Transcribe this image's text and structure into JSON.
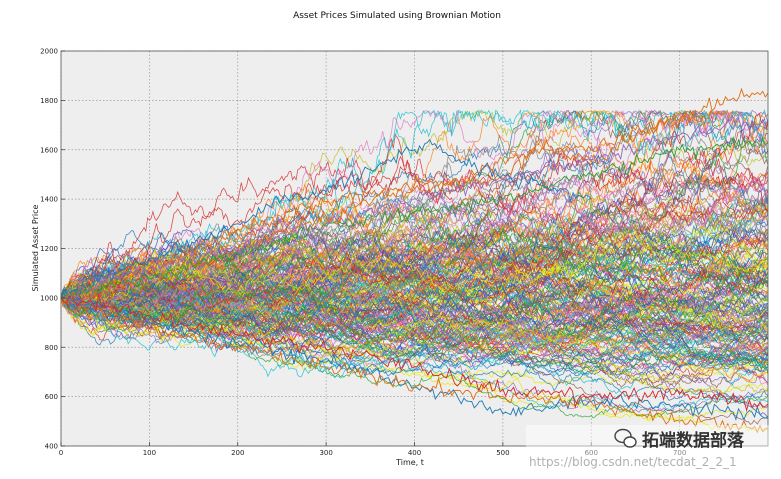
{
  "chart_data": {
    "type": "line",
    "title": "Asset Prices Simulated using Brownian Motion",
    "xlabel": "Time, t",
    "ylabel": "Simulated Asset Price",
    "xlim": [
      0,
      800
    ],
    "ylim": [
      400,
      2000
    ],
    "xticks": [
      0,
      100,
      200,
      300,
      400,
      500,
      600,
      700
    ],
    "yticks": [
      400,
      600,
      800,
      1000,
      1200,
      1400,
      1600,
      1800,
      2000
    ],
    "grid": true,
    "background": "#eeeeee",
    "legend": "none",
    "simulation": {
      "initial_price": 1000,
      "num_steps": 800
    },
    "palette": [
      "#1f77b4",
      "#ff7f0e",
      "#2ca02c",
      "#d62728",
      "#9467bd",
      "#8c564b",
      "#e377c2",
      "#7f7f7f",
      "#bcbd22",
      "#17becf",
      "#e6e600",
      "#3f51b5"
    ],
    "highlighted_series": [
      {
        "color": "#e06c12",
        "points": [
          [
            0,
            1000
          ],
          [
            100,
            1120
          ],
          [
            200,
            1280
          ],
          [
            300,
            1390
          ],
          [
            400,
            1440
          ],
          [
            450,
            1470
          ],
          [
            500,
            1560
          ],
          [
            550,
            1600
          ],
          [
            600,
            1550
          ],
          [
            650,
            1650
          ],
          [
            700,
            1720
          ],
          [
            750,
            1750
          ]
        ]
      },
      {
        "color": "#e06c12",
        "points": [
          [
            0,
            1000
          ],
          [
            100,
            1050
          ],
          [
            200,
            1200
          ],
          [
            300,
            1330
          ],
          [
            400,
            1460
          ],
          [
            500,
            1480
          ],
          [
            540,
            1620
          ],
          [
            600,
            1600
          ],
          [
            650,
            1680
          ],
          [
            700,
            1720
          ],
          [
            755,
            1800
          ],
          [
            800,
            1830
          ]
        ]
      },
      {
        "color": "#1f77b4",
        "points": [
          [
            0,
            1000
          ],
          [
            100,
            1160
          ],
          [
            200,
            1300
          ],
          [
            250,
            1400
          ],
          [
            300,
            1430
          ],
          [
            350,
            1520
          ],
          [
            400,
            1600
          ],
          [
            420,
            1620
          ],
          [
            450,
            1560
          ],
          [
            500,
            1500
          ],
          [
            550,
            1450
          ],
          [
            600,
            1400
          ]
        ]
      },
      {
        "color": "#1f77b4",
        "points": [
          [
            0,
            1000
          ],
          [
            100,
            900
          ],
          [
            200,
            820
          ],
          [
            300,
            740
          ],
          [
            350,
            690
          ],
          [
            400,
            640
          ],
          [
            450,
            590
          ],
          [
            500,
            530
          ],
          [
            550,
            560
          ],
          [
            600,
            580
          ],
          [
            700,
            560
          ],
          [
            800,
            520
          ]
        ]
      },
      {
        "color": "#e06c12",
        "points": [
          [
            0,
            1000
          ],
          [
            100,
            880
          ],
          [
            200,
            800
          ],
          [
            300,
            720
          ],
          [
            400,
            640
          ],
          [
            500,
            600
          ],
          [
            600,
            580
          ],
          [
            700,
            500
          ],
          [
            800,
            470
          ]
        ]
      },
      {
        "color": "#d62728",
        "points": [
          [
            0,
            1000
          ],
          [
            100,
            930
          ],
          [
            200,
            850
          ],
          [
            300,
            790
          ],
          [
            400,
            720
          ],
          [
            500,
            630
          ],
          [
            600,
            600
          ],
          [
            700,
            610
          ],
          [
            800,
            570
          ]
        ]
      },
      {
        "color": "#2ca02c",
        "points": [
          [
            0,
            1000
          ],
          [
            100,
            1080
          ],
          [
            200,
            1180
          ],
          [
            300,
            1290
          ],
          [
            400,
            1350
          ],
          [
            500,
            1400
          ],
          [
            600,
            1500
          ],
          [
            700,
            1600
          ],
          [
            800,
            1630
          ]
        ]
      },
      {
        "color": "#9467bd",
        "points": [
          [
            0,
            1000
          ],
          [
            100,
            1120
          ],
          [
            200,
            1200
          ],
          [
            300,
            1300
          ],
          [
            400,
            1400
          ],
          [
            500,
            1480
          ],
          [
            600,
            1560
          ],
          [
            700,
            1660
          ],
          [
            800,
            1720
          ]
        ]
      }
    ]
  },
  "watermark": {
    "url_text": "https://blog.csdn.net/tecdat_2_2_1",
    "brand_text": "拓端数据部落"
  }
}
